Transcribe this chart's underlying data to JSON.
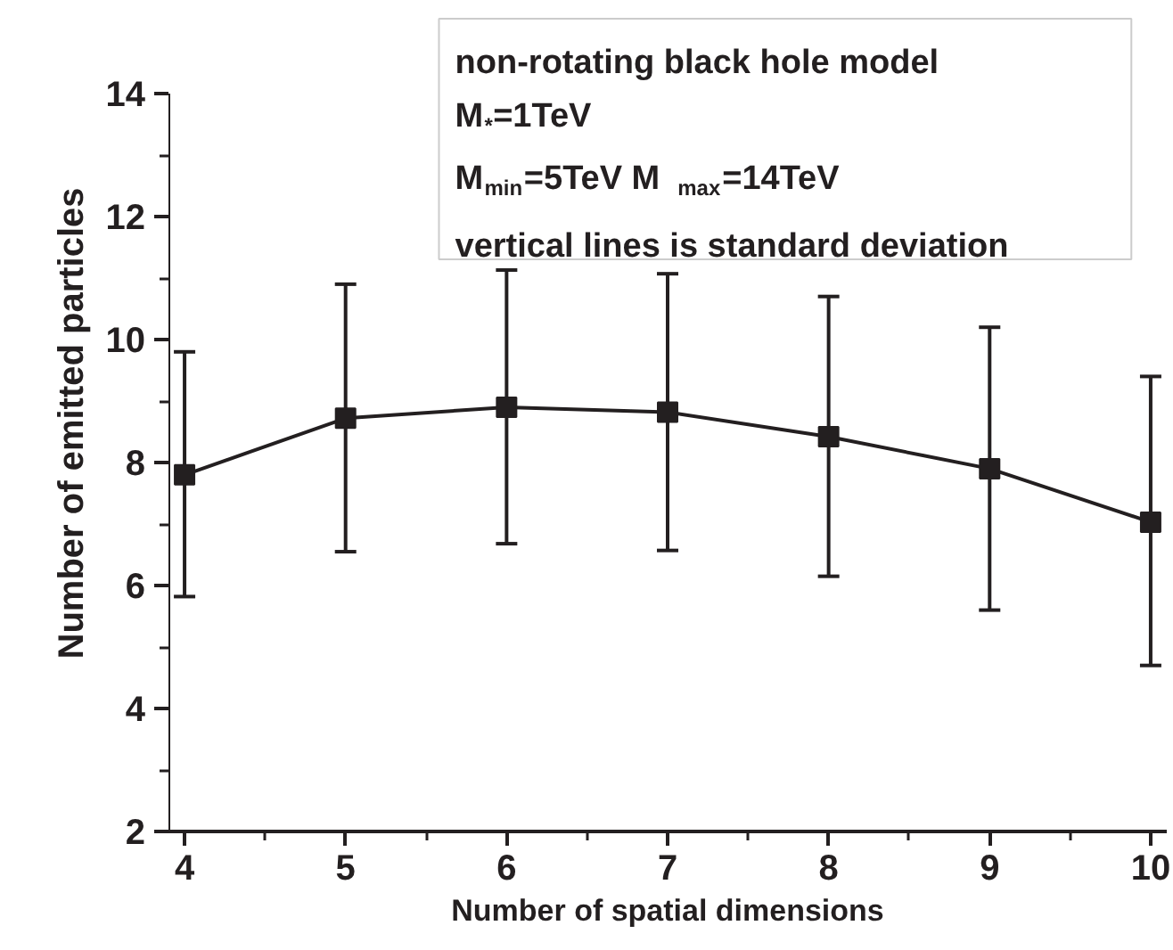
{
  "chart_data": {
    "type": "line",
    "xlabel": "Number of spatial dimensions",
    "ylabel": "Number of emitted particles",
    "x": [
      4,
      5,
      6,
      7,
      8,
      9,
      10
    ],
    "series": [
      {
        "color": "#231f20",
        "values": [
          7.8,
          8.72,
          8.9,
          8.82,
          8.42,
          7.9,
          7.03
        ],
        "errors": [
          [
            5.82,
            9.8
          ],
          [
            6.55,
            10.9
          ],
          [
            6.68,
            11.13
          ],
          [
            6.57,
            11.07
          ],
          [
            6.15,
            10.7
          ],
          [
            5.6,
            10.2
          ],
          [
            4.7,
            9.4
          ]
        ]
      }
    ],
    "xlim": [
      3.9,
      10.1
    ],
    "ylim": [
      2,
      14
    ],
    "xticks": [
      4,
      5,
      6,
      7,
      8,
      9,
      10
    ],
    "yticks": [
      2,
      4,
      6,
      8,
      10,
      12,
      14
    ],
    "marker": "square",
    "line_style": "solid",
    "grid": false,
    "annotations": [
      "non-rotating black hole  model",
      "M$_{*}$=1TeV",
      "M$_{min}$=5TeV  M$_{max}$=14TeV",
      "vertical lines is standard deviation"
    ]
  }
}
